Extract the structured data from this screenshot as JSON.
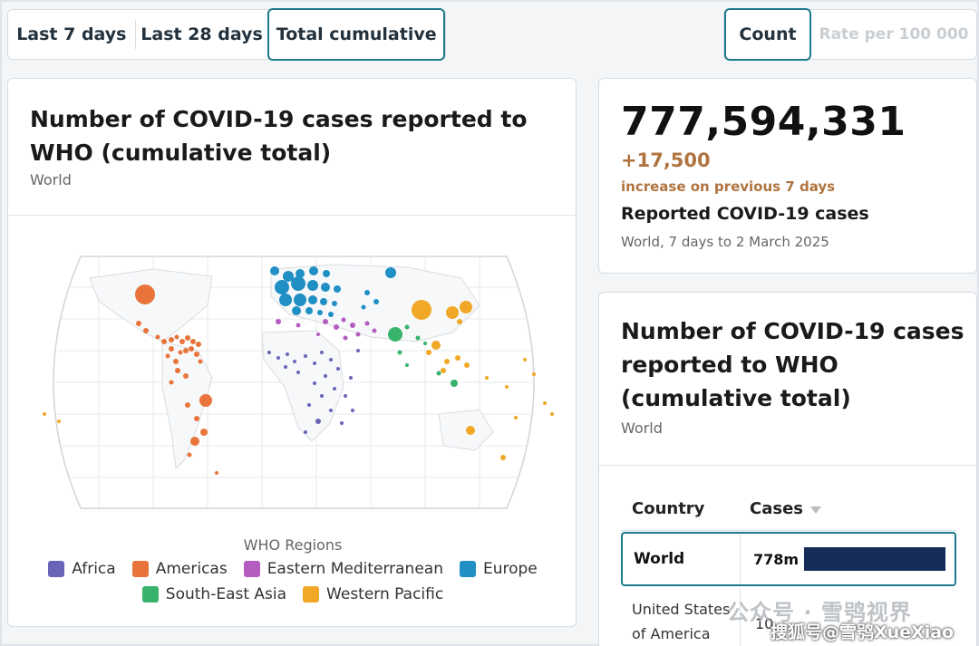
{
  "toolbar": {
    "period_tabs": [
      {
        "label": "Last 7 days",
        "active": false
      },
      {
        "label": "Last 28 days",
        "active": false
      },
      {
        "label": "Total cumulative",
        "active": true
      }
    ],
    "metric_tabs": [
      {
        "label": "Count",
        "active": true
      },
      {
        "label": "Rate per 100 000",
        "active": false,
        "disabled": true
      }
    ]
  },
  "map_card": {
    "title": "Number of COVID-19 cases reported to WHO (cumulative total)",
    "subtitle": "World",
    "legend_title": "WHO Regions",
    "legend": [
      {
        "name": "Africa",
        "color": "#6a64b8"
      },
      {
        "name": "Americas",
        "color": "#e8743b"
      },
      {
        "name": "Eastern Mediterranean",
        "color": "#b45cc0"
      },
      {
        "name": "Europe",
        "color": "#1f8fc4"
      },
      {
        "name": "South-East Asia",
        "color": "#37b36b"
      },
      {
        "name": "Western Pacific",
        "color": "#f0a826"
      }
    ]
  },
  "stat_card": {
    "total": "777,594,331",
    "delta": "+17,500",
    "delta_note": "increase on previous 7 days",
    "label": "Reported COVID-19 cases",
    "meta": "World, 7 days to 2 March 2025"
  },
  "table_card": {
    "title": "Number of COVID-19 cases reported to WHO (cumulative total)",
    "subtitle": "World",
    "columns": {
      "country": "Country",
      "cases": "Cases"
    },
    "rows": [
      {
        "country": "World",
        "value": "778m",
        "share": 1.0
      },
      {
        "country": "United States of America",
        "value": "10"
      }
    ]
  },
  "watermark": {
    "line1": "公众号 · 雪鸮视界",
    "line2": "搜狐号@雪鸮XueXiao"
  }
}
